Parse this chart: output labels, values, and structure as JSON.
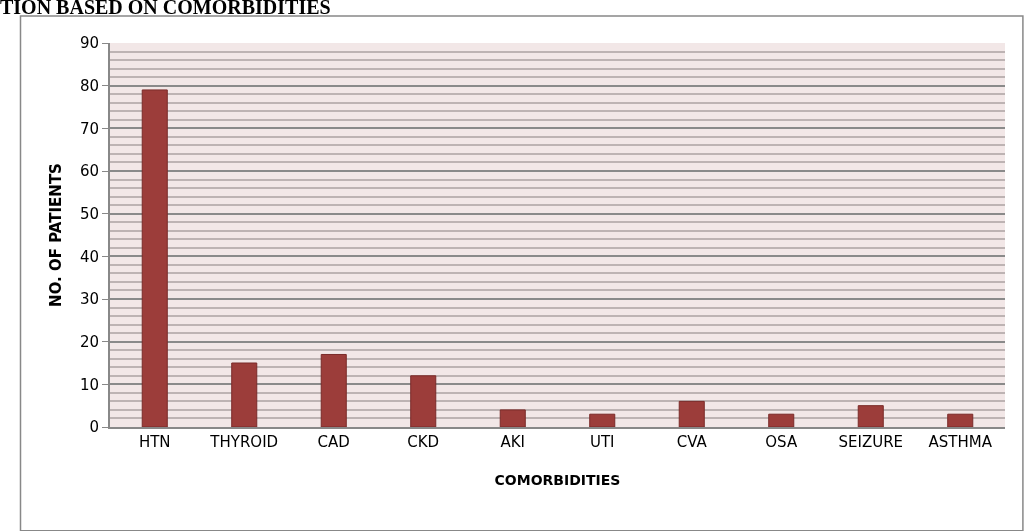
{
  "chart_data": {
    "type": "bar",
    "title": "TION BASED ON COMORBIDITIES",
    "xlabel": "COMORBIDITIES",
    "ylabel": "NO. OF PATIENTS",
    "categories": [
      "HTN",
      "THYROID",
      "CAD",
      "CKD",
      "AKI",
      "UTI",
      "CVA",
      "OSA",
      "SEIZURE",
      "ASTHMA"
    ],
    "values": [
      79,
      15,
      17,
      12,
      4,
      3,
      6,
      3,
      5,
      3
    ],
    "color": "#9c3d3a",
    "ylim": [
      0,
      90
    ],
    "yticks": [
      0,
      10,
      20,
      30,
      40,
      50,
      60,
      70,
      80,
      90
    ],
    "grid": "y",
    "legend": false
  }
}
